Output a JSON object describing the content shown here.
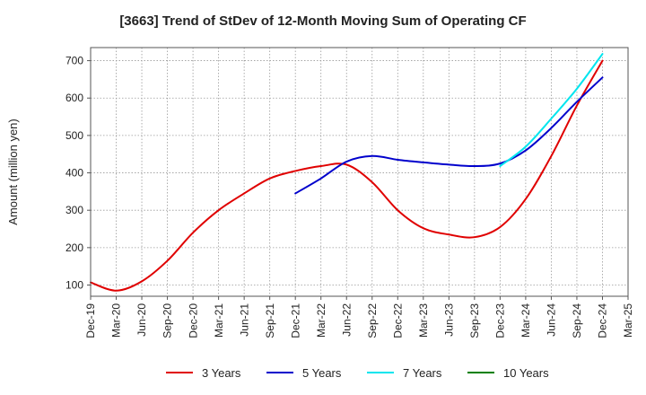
{
  "chart_data": {
    "type": "line",
    "title": "[3663]  Trend of StDev of 12-Month Moving Sum of Operating CF",
    "xlabel": "",
    "ylabel": "Amount (million yen)",
    "ylim": [
      70,
      735
    ],
    "yticks": [
      100,
      200,
      300,
      400,
      500,
      600,
      700
    ],
    "categories": [
      "Dec-19",
      "Mar-20",
      "Jun-20",
      "Sep-20",
      "Dec-20",
      "Mar-21",
      "Jun-21",
      "Sep-21",
      "Dec-21",
      "Mar-22",
      "Jun-22",
      "Sep-22",
      "Dec-22",
      "Mar-23",
      "Jun-23",
      "Sep-23",
      "Dec-23",
      "Mar-24",
      "Jun-24",
      "Sep-24",
      "Dec-24",
      "Mar-25"
    ],
    "grid": true,
    "legend_position": "bottom",
    "series": [
      {
        "name": "3 Years",
        "color": "#e00000",
        "values": [
          107,
          85,
          110,
          165,
          240,
          300,
          345,
          385,
          405,
          418,
          422,
          375,
          300,
          252,
          235,
          228,
          255,
          330,
          445,
          580,
          700,
          null
        ]
      },
      {
        "name": "5 Years",
        "color": "#0000cc",
        "values": [
          null,
          null,
          null,
          null,
          null,
          null,
          null,
          null,
          345,
          385,
          430,
          445,
          435,
          428,
          422,
          418,
          425,
          460,
          520,
          590,
          655,
          null
        ]
      },
      {
        "name": "7 Years",
        "color": "#00e5ee",
        "values": [
          null,
          null,
          null,
          null,
          null,
          null,
          null,
          null,
          null,
          null,
          null,
          null,
          null,
          null,
          null,
          null,
          418,
          470,
          545,
          625,
          718,
          null
        ]
      },
      {
        "name": "10 Years",
        "color": "#008000",
        "values": [
          null,
          null,
          null,
          null,
          null,
          null,
          null,
          null,
          null,
          null,
          null,
          null,
          null,
          null,
          null,
          null,
          null,
          null,
          null,
          null,
          null,
          null
        ]
      }
    ]
  }
}
